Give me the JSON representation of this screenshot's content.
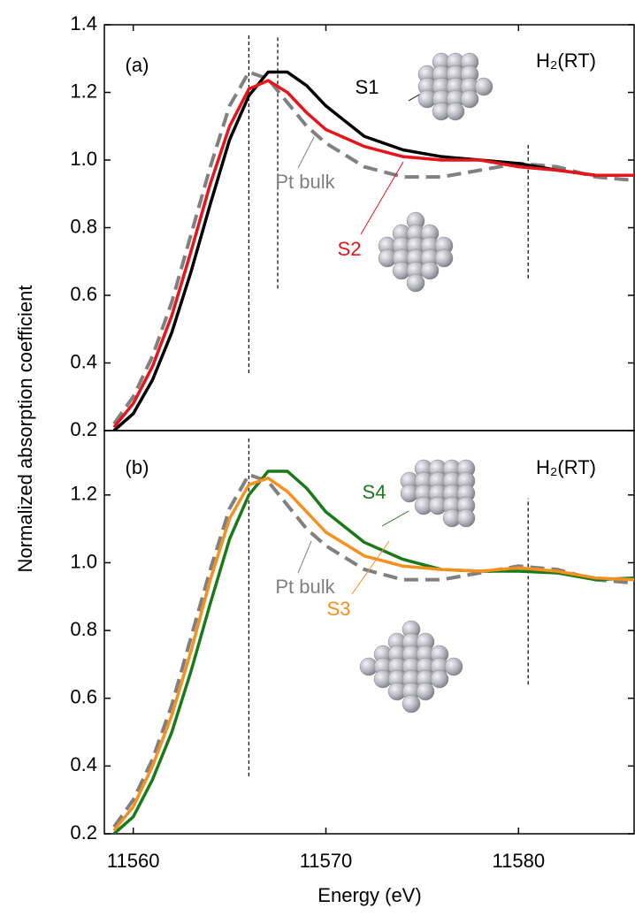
{
  "chart_data": [
    {
      "type": "line",
      "panel_label": "(a)",
      "annotation": "H₂(RT)",
      "ylabel": "Normalized absorption coefficient",
      "x": [
        11559,
        11560,
        11561,
        11562,
        11563,
        11564,
        11565,
        11566,
        11567,
        11568,
        11569,
        11570,
        11572,
        11574,
        11576,
        11578,
        11580,
        11582,
        11584,
        11586
      ],
      "series": [
        {
          "name": "Pt bulk",
          "color": "#808080",
          "dashed": true,
          "values": [
            0.22,
            0.3,
            0.42,
            0.58,
            0.78,
            0.98,
            1.16,
            1.26,
            1.24,
            1.17,
            1.1,
            1.05,
            0.98,
            0.95,
            0.95,
            0.97,
            0.99,
            0.98,
            0.95,
            0.94
          ]
        },
        {
          "name": "S1",
          "color": "#000000",
          "values": [
            0.2,
            0.25,
            0.35,
            0.49,
            0.67,
            0.87,
            1.06,
            1.19,
            1.26,
            1.26,
            1.22,
            1.16,
            1.07,
            1.03,
            1.01,
            1.0,
            0.99,
            0.97,
            0.955,
            0.955
          ]
        },
        {
          "name": "S2",
          "color": "#e8141c",
          "values": [
            0.21,
            0.28,
            0.39,
            0.54,
            0.73,
            0.93,
            1.1,
            1.21,
            1.235,
            1.2,
            1.14,
            1.09,
            1.04,
            1.01,
            1.0,
            1.0,
            0.98,
            0.97,
            0.955,
            0.955
          ]
        }
      ],
      "vlines": [
        {
          "x": 11566,
          "y0": 0.37,
          "y1": 1.37
        },
        {
          "x": 11567.5,
          "y0": 0.62,
          "y1": 1.37
        },
        {
          "x": 11580.5,
          "y0": 0.65,
          "y1": 1.05
        }
      ],
      "xlim": [
        11558.5,
        11586
      ],
      "ylim": [
        0.2,
        1.4
      ],
      "yticks": [
        0.2,
        0.4,
        0.6,
        0.8,
        {
          "value": 1.0,
          "label": "1.0"
        },
        1.2,
        1.4
      ]
    },
    {
      "type": "line",
      "panel_label": "(b)",
      "annotation": "H₂(RT)",
      "xlabel": "Energy (eV)",
      "x": [
        11559,
        11560,
        11561,
        11562,
        11563,
        11564,
        11565,
        11566,
        11567,
        11568,
        11569,
        11570,
        11572,
        11574,
        11576,
        11578,
        11580,
        11582,
        11584,
        11586
      ],
      "series": [
        {
          "name": "Pt bulk",
          "color": "#808080",
          "dashed": true,
          "values": [
            0.22,
            0.3,
            0.42,
            0.58,
            0.78,
            0.98,
            1.16,
            1.26,
            1.24,
            1.17,
            1.1,
            1.05,
            0.98,
            0.95,
            0.95,
            0.97,
            0.99,
            0.98,
            0.95,
            0.94
          ]
        },
        {
          "name": "S4",
          "color": "#1a7a1a",
          "values": [
            0.2,
            0.25,
            0.36,
            0.5,
            0.68,
            0.88,
            1.07,
            1.2,
            1.27,
            1.27,
            1.22,
            1.15,
            1.06,
            1.01,
            0.98,
            0.975,
            0.975,
            0.97,
            0.95,
            0.955
          ]
        },
        {
          "name": "S3",
          "color": "#f7901e",
          "values": [
            0.21,
            0.28,
            0.4,
            0.55,
            0.74,
            0.95,
            1.13,
            1.23,
            1.25,
            1.21,
            1.15,
            1.09,
            1.02,
            0.99,
            0.98,
            0.975,
            0.985,
            0.975,
            0.955,
            0.95
          ]
        }
      ],
      "vlines": [
        {
          "x": 11566,
          "y0": 0.37,
          "y1": 1.37
        },
        {
          "x": 11580.5,
          "y0": 0.64,
          "y1": 1.19
        }
      ],
      "xlim": [
        11558.5,
        11586
      ],
      "ylim": [
        0.2,
        1.39
      ],
      "xticks": [
        11560,
        11570,
        11580
      ],
      "yticks": [
        0.2,
        0.4,
        0.6,
        0.8,
        {
          "value": 1.0,
          "label": "1.0"
        },
        1.2
      ]
    }
  ]
}
